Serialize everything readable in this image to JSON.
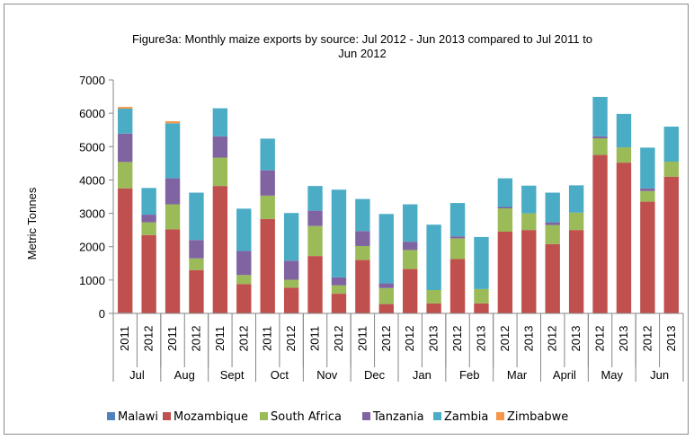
{
  "chart_data": {
    "type": "bar",
    "stacked": true,
    "title": "Figure3a: Monthly maize exports by source: Jul 2012  - Jun 2013 compared to Jul 2011 to Jun 2012",
    "title_lines": [
      "Figure3a: Monthly maize exports by source: Jul 2012  - Jun 2013 compared to Jul 2011 to",
      "Jun 2012"
    ],
    "xlabel": "",
    "ylabel": "Metric  Tonnes",
    "ylim": [
      0,
      7000
    ],
    "yticks": [
      0,
      1000,
      2000,
      3000,
      4000,
      5000,
      6000,
      7000
    ],
    "grid": false,
    "legend_position": "bottom",
    "categories": [
      {
        "year": "2011",
        "month": "Jul"
      },
      {
        "year": "2012",
        "month": "Jul"
      },
      {
        "year": "2011",
        "month": "Aug"
      },
      {
        "year": "2012",
        "month": "Aug"
      },
      {
        "year": "2011",
        "month": "Sept"
      },
      {
        "year": "2012",
        "month": "Sept"
      },
      {
        "year": "2011",
        "month": "Oct"
      },
      {
        "year": "2012",
        "month": "Oct"
      },
      {
        "year": "2011",
        "month": "Nov"
      },
      {
        "year": "2012",
        "month": "Nov"
      },
      {
        "year": "2011",
        "month": "Dec"
      },
      {
        "year": "2012",
        "month": "Dec"
      },
      {
        "year": "2012",
        "month": "Jan"
      },
      {
        "year": "2013",
        "month": "Jan"
      },
      {
        "year": "2012",
        "month": "Feb"
      },
      {
        "year": "2013",
        "month": "Feb"
      },
      {
        "year": "2012",
        "month": "Mar"
      },
      {
        "year": "2013",
        "month": "Mar"
      },
      {
        "year": "2012",
        "month": "April"
      },
      {
        "year": "2013",
        "month": "April"
      },
      {
        "year": "2012",
        "month": "May"
      },
      {
        "year": "2013",
        "month": "May"
      },
      {
        "year": "2012",
        "month": "Jun"
      },
      {
        "year": "2013",
        "month": "Jun"
      }
    ],
    "months": [
      "Jul",
      "Aug",
      "Sept",
      "Oct",
      "Nov",
      "Dec",
      "Jan",
      "Feb",
      "Mar",
      "April",
      "May",
      "Jun"
    ],
    "series": [
      {
        "name": "Malawi",
        "color": "#4f81bd",
        "values": [
          20,
          0,
          0,
          0,
          0,
          0,
          0,
          0,
          0,
          0,
          0,
          0,
          0,
          0,
          0,
          0,
          0,
          0,
          0,
          0,
          0,
          0,
          0,
          0
        ]
      },
      {
        "name": "Mozambique",
        "color": "#c0504d",
        "values": [
          3730,
          2350,
          2520,
          1300,
          3820,
          880,
          2830,
          770,
          1720,
          590,
          1600,
          280,
          1330,
          300,
          1630,
          300,
          2450,
          2500,
          2080,
          2500,
          4750,
          4520,
          3350,
          4100
        ]
      },
      {
        "name": "South Africa",
        "color": "#9bbb59",
        "values": [
          790,
          380,
          750,
          350,
          850,
          270,
          700,
          240,
          900,
          250,
          420,
          480,
          570,
          400,
          620,
          430,
          700,
          500,
          570,
          520,
          500,
          460,
          320,
          450
        ]
      },
      {
        "name": "Tanzania",
        "color": "#8064a2",
        "values": [
          850,
          230,
          780,
          550,
          640,
          720,
          760,
          570,
          460,
          240,
          450,
          140,
          250,
          0,
          60,
          0,
          40,
          0,
          80,
          0,
          60,
          0,
          80,
          0
        ]
      },
      {
        "name": "Zambia",
        "color": "#4bacc6",
        "values": [
          750,
          800,
          1650,
          1420,
          840,
          1270,
          950,
          1430,
          740,
          2630,
          960,
          2080,
          1120,
          1960,
          1000,
          1560,
          860,
          830,
          890,
          820,
          1180,
          1000,
          1220,
          1050
        ]
      },
      {
        "name": "Zimbabwe",
        "color": "#f79646",
        "values": [
          50,
          0,
          60,
          0,
          0,
          0,
          0,
          0,
          0,
          0,
          0,
          0,
          0,
          0,
          0,
          0,
          0,
          0,
          0,
          0,
          0,
          0,
          0,
          0
        ]
      }
    ]
  }
}
